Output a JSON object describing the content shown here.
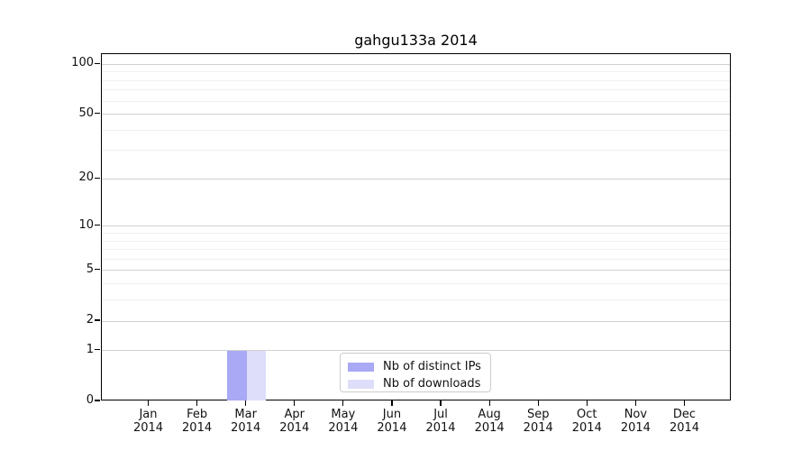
{
  "chart_data": {
    "type": "bar",
    "title": "gahgu133a 2014",
    "categories": [
      "Jan",
      "Feb",
      "Mar",
      "Apr",
      "May",
      "Jun",
      "Jul",
      "Aug",
      "Sep",
      "Oct",
      "Nov",
      "Dec"
    ],
    "x_tick_year": "2014",
    "series": [
      {
        "name": "Nb of distinct IPs",
        "color": "#a9a9f5",
        "values": [
          0,
          0,
          1,
          0,
          0,
          0,
          0,
          0,
          0,
          0,
          0,
          0
        ]
      },
      {
        "name": "Nb of downloads",
        "color": "#dedefa",
        "values": [
          0,
          0,
          1,
          0,
          0,
          0,
          0,
          0,
          0,
          0,
          0,
          0
        ]
      }
    ],
    "yscale": "log1p",
    "ylim": [
      0,
      115
    ],
    "y_ticks": [
      0,
      1,
      2,
      5,
      10,
      20,
      50,
      100
    ],
    "y_minor_gridlines": [
      3,
      4,
      6,
      7,
      8,
      9,
      30,
      40,
      60,
      70,
      80,
      90
    ],
    "grid": "horizontal",
    "legend_position": "bottom-center",
    "colors": {
      "grid_major": "#d0d0d0",
      "grid_minor": "#f0f0f0",
      "axis": "#000000",
      "legend_border": "#cccccc",
      "background": "#ffffff"
    }
  }
}
